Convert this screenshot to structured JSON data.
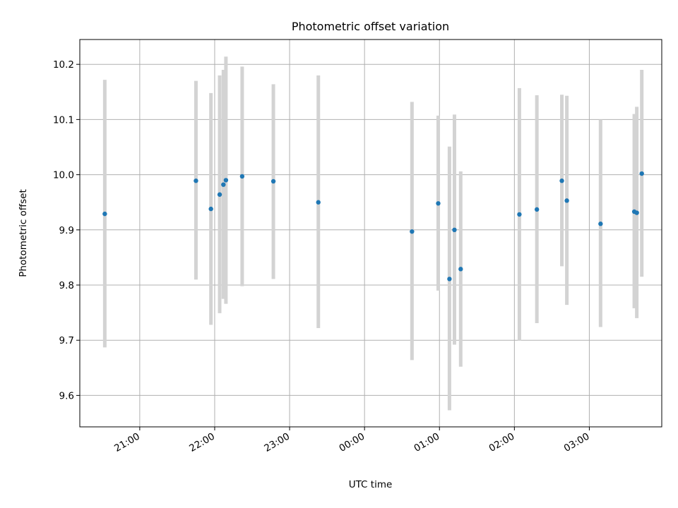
{
  "chart_data": {
    "type": "scatter",
    "title": "Photometric offset variation",
    "xlabel": "UTC time",
    "ylabel": "Photometric offset",
    "x_is_time": true,
    "xlim": [
      "20:12",
      "27:58"
    ],
    "ylim": [
      9.543,
      10.245
    ],
    "x_ticks": [
      "21:00",
      "22:00",
      "23:00",
      "00:00",
      "01:00",
      "02:00",
      "03:00"
    ],
    "y_ticks": [
      "9.6",
      "9.7",
      "9.8",
      "9.9",
      "10.0",
      "10.1",
      "10.2"
    ],
    "grid": true,
    "colors": {
      "point": "#1f77b4",
      "errorbar": "#d3d3d3"
    },
    "series": [
      {
        "points": [
          {
            "t": "20:32",
            "y": 9.929,
            "ylo": 9.687,
            "yhi": 10.172
          },
          {
            "t": "21:45",
            "y": 9.989,
            "ylo": 9.81,
            "yhi": 10.17
          },
          {
            "t": "21:57",
            "y": 9.938,
            "ylo": 9.728,
            "yhi": 10.148
          },
          {
            "t": "22:04",
            "y": 9.964,
            "ylo": 9.749,
            "yhi": 10.18
          },
          {
            "t": "22:07",
            "y": 9.982,
            "ylo": 9.775,
            "yhi": 10.19
          },
          {
            "t": "22:09",
            "y": 9.99,
            "ylo": 9.766,
            "yhi": 10.214
          },
          {
            "t": "22:22",
            "y": 9.997,
            "ylo": 9.798,
            "yhi": 10.196
          },
          {
            "t": "22:47",
            "y": 9.988,
            "ylo": 9.811,
            "yhi": 10.164
          },
          {
            "t": "23:23",
            "y": 9.95,
            "ylo": 9.722,
            "yhi": 10.18
          },
          {
            "t": "24:38",
            "y": 9.897,
            "ylo": 9.664,
            "yhi": 10.132
          },
          {
            "t": "24:59",
            "y": 9.948,
            "ylo": 9.79,
            "yhi": 10.107
          },
          {
            "t": "25:08",
            "y": 9.811,
            "ylo": 9.573,
            "yhi": 10.051
          },
          {
            "t": "25:12",
            "y": 9.9,
            "ylo": 9.692,
            "yhi": 10.109
          },
          {
            "t": "25:17",
            "y": 9.829,
            "ylo": 9.652,
            "yhi": 10.006
          },
          {
            "t": "26:04",
            "y": 9.928,
            "ylo": 9.699,
            "yhi": 10.157
          },
          {
            "t": "26:18",
            "y": 9.937,
            "ylo": 9.731,
            "yhi": 10.144
          },
          {
            "t": "26:38",
            "y": 9.989,
            "ylo": 9.834,
            "yhi": 10.145
          },
          {
            "t": "26:42",
            "y": 9.953,
            "ylo": 9.764,
            "yhi": 10.143
          },
          {
            "t": "27:09",
            "y": 9.911,
            "ylo": 9.724,
            "yhi": 10.1
          },
          {
            "t": "27:36",
            "y": 9.933,
            "ylo": 9.758,
            "yhi": 10.11
          },
          {
            "t": "27:38",
            "y": 9.931,
            "ylo": 9.74,
            "yhi": 10.123
          },
          {
            "t": "27:42",
            "y": 10.002,
            "ylo": 9.815,
            "yhi": 10.19
          }
        ]
      }
    ]
  }
}
